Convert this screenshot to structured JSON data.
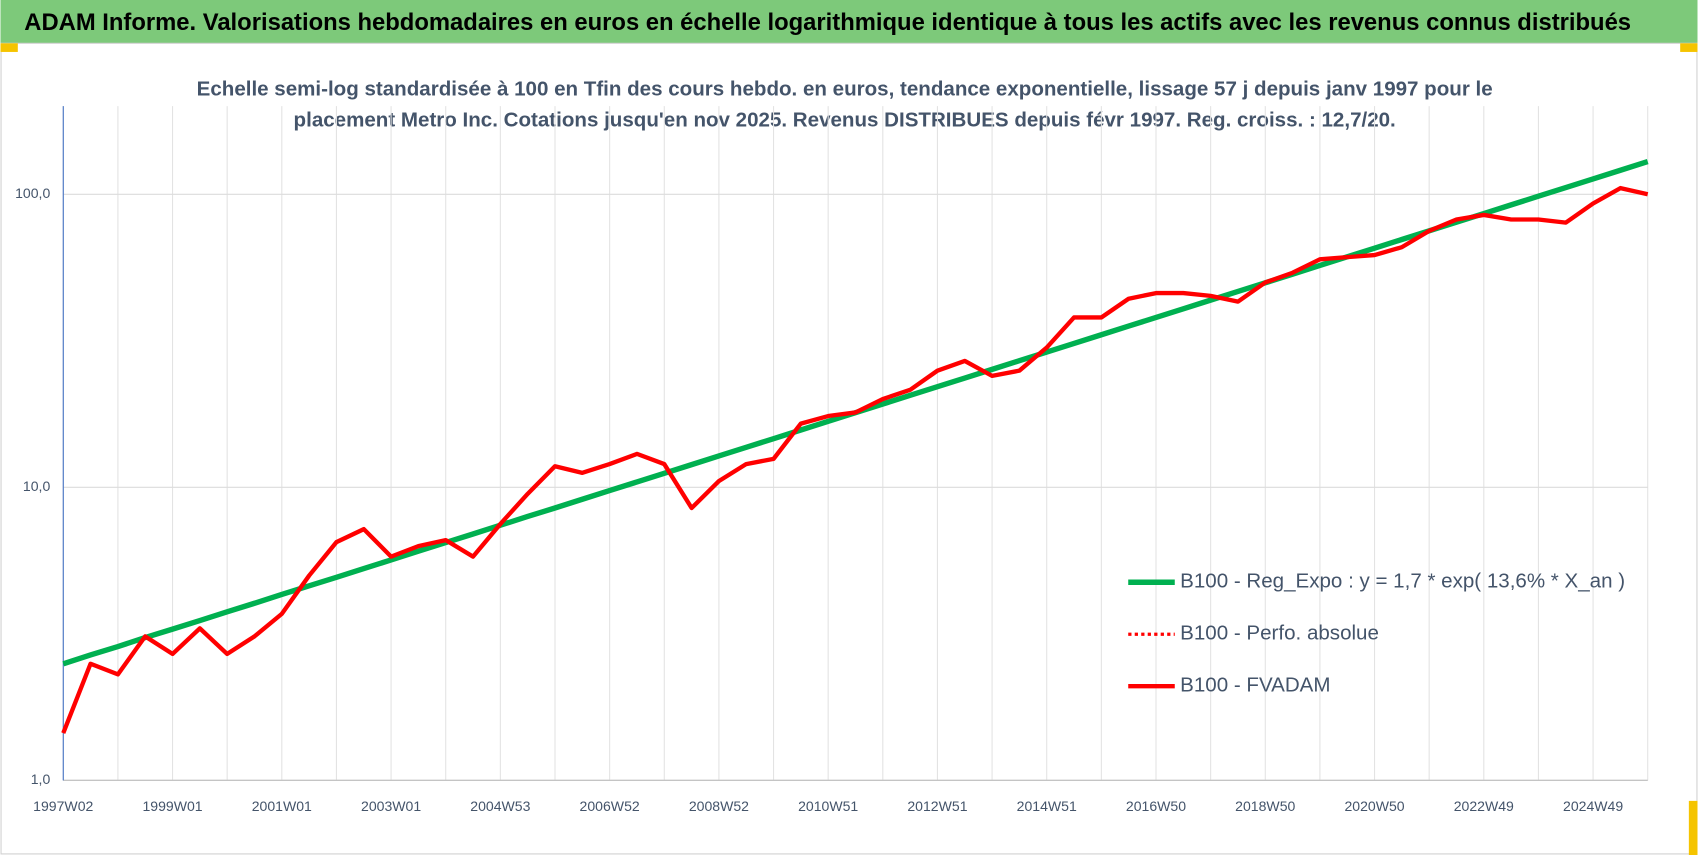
{
  "header": {
    "title": "ADAM Informe. Valorisations hebdomadaires en euros en échelle logarithmique identique à tous les actifs avec les revenus connus distribués"
  },
  "chart_data": {
    "type": "line",
    "subtitle": [
      "Echelle semi-log standardisée à 100 en Tfin des cours hebdo. en euros, tendance exponentielle, lissage 57 j depuis janv 1997 pour le",
      "placement Metro Inc. Cotations jusqu'en nov 2025. Revenus DISTRIBUES depuis févr 1997. Reg. croiss. : 12,7/20."
    ],
    "log_y": true,
    "grid": true,
    "legend_position": "right",
    "ylim": [
      1,
      200
    ],
    "yticks": [
      {
        "value": 1,
        "label": "1,0"
      },
      {
        "value": 10,
        "label": "10,0"
      },
      {
        "value": 100,
        "label": "100,0"
      }
    ],
    "categories": [
      "1997W02",
      null,
      null,
      null,
      "1999W01",
      null,
      null,
      null,
      "2001W01",
      null,
      null,
      null,
      "2003W01",
      null,
      null,
      null,
      "2004W53",
      null,
      null,
      null,
      "2006W52",
      null,
      null,
      null,
      "2008W52",
      null,
      null,
      null,
      "2010W51",
      null,
      null,
      null,
      "2012W51",
      null,
      null,
      null,
      "2014W51",
      null,
      null,
      null,
      "2016W50",
      null,
      null,
      null,
      "2018W50",
      null,
      null,
      null,
      "2020W50",
      null,
      null,
      null,
      "2022W49",
      null,
      null,
      null,
      "2024W49",
      null,
      null
    ],
    "series": [
      {
        "name": "B100 - Reg_Expo : y = 1,7 * exp( 13,6% *  X_an )",
        "color": "#00b050",
        "style": "solid",
        "width": 5,
        "values": [
          2.5,
          2.68,
          2.86,
          3.07,
          3.28,
          3.51,
          3.76,
          4.02,
          4.31,
          4.61,
          4.93,
          5.28,
          5.65,
          6.05,
          6.48,
          6.93,
          7.42,
          7.95,
          8.5,
          9.1,
          9.74,
          10.43,
          11.16,
          11.95,
          12.79,
          13.69,
          14.66,
          15.69,
          16.79,
          17.98,
          19.24,
          20.6,
          22.05,
          23.6,
          25.26,
          27.04,
          28.94,
          30.98,
          33.16,
          35.49,
          37.99,
          40.67,
          43.53,
          46.6,
          49.88,
          53.39,
          57.15,
          61.17,
          65.48,
          70.09,
          75.02,
          80.3,
          85.96,
          92.01,
          98.49,
          105.4,
          112.8,
          120.8,
          129.3
        ]
      },
      {
        "name": "B100 - Perfo. absolue",
        "color": "#ff0000",
        "style": "dotted",
        "width": 3,
        "values": [
          1.45,
          2.5,
          2.3,
          3.1,
          2.7,
          3.3,
          2.7,
          3.1,
          3.7,
          5.0,
          6.5,
          7.2,
          5.8,
          6.3,
          6.6,
          5.8,
          7.5,
          9.5,
          11.8,
          11.2,
          12.0,
          13.0,
          12.0,
          8.5,
          10.5,
          12.0,
          12.5,
          16.5,
          17.5,
          18,
          20,
          21.5,
          25,
          27,
          24,
          25,
          30,
          38,
          38,
          44,
          46,
          46,
          45,
          43,
          50,
          54,
          60,
          61,
          62,
          66,
          75,
          82,
          85,
          82,
          82,
          80,
          93,
          105,
          100
        ]
      },
      {
        "name": "B100 - FVADAM",
        "color": "#ff0000",
        "style": "solid",
        "width": 4,
        "values": [
          1.45,
          2.5,
          2.3,
          3.1,
          2.7,
          3.3,
          2.7,
          3.1,
          3.7,
          5.0,
          6.5,
          7.2,
          5.8,
          6.3,
          6.6,
          5.8,
          7.5,
          9.5,
          11.8,
          11.2,
          12.0,
          13.0,
          12.0,
          8.5,
          10.5,
          12.0,
          12.5,
          16.5,
          17.5,
          18,
          20,
          21.5,
          25,
          27,
          24,
          25,
          30,
          38,
          38,
          44,
          46,
          46,
          45,
          43,
          50,
          54,
          60,
          61,
          62,
          66,
          75,
          82,
          85,
          82,
          82,
          80,
          93,
          105,
          100
        ]
      }
    ]
  }
}
